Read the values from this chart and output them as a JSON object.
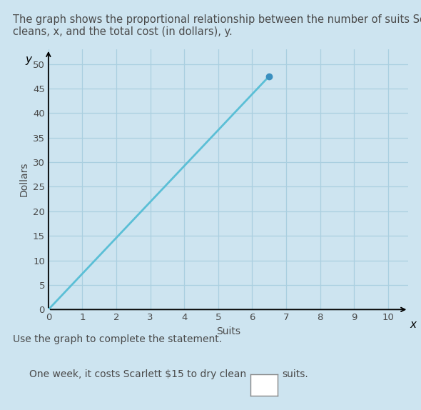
{
  "title_line1": "The graph shows the proportional relationship between the number of suits Scarlett dry",
  "title_line2": "cleans, x, and the total cost (in dollars), y.",
  "xlabel": "Suits",
  "ylabel": "Dollars",
  "y_axis_label": "y",
  "x_axis_label": "x",
  "xlim": [
    0,
    10.6
  ],
  "ylim": [
    0,
    53
  ],
  "xticks": [
    0,
    1,
    2,
    3,
    4,
    5,
    6,
    7,
    8,
    9,
    10
  ],
  "yticks": [
    0,
    5,
    10,
    15,
    20,
    25,
    30,
    35,
    40,
    45,
    50
  ],
  "line_x": [
    0,
    6.5
  ],
  "line_y": [
    0,
    47.5
  ],
  "line_color": "#5bbfd6",
  "grid_color": "#aacfe0",
  "bg_color": "#cde4f0",
  "text_color": "#4a4a4a",
  "dot_color": "#3a8fbf",
  "dot_x": 6.5,
  "dot_y": 47.5,
  "statement_line1": "Use the graph to complete the statement.",
  "statement_line2": "One week, it costs Scarlett $15 to dry clean",
  "statement_line2_end": "suits.",
  "title_fontsize": 10.5,
  "axis_label_fontsize": 10,
  "tick_fontsize": 9.5
}
